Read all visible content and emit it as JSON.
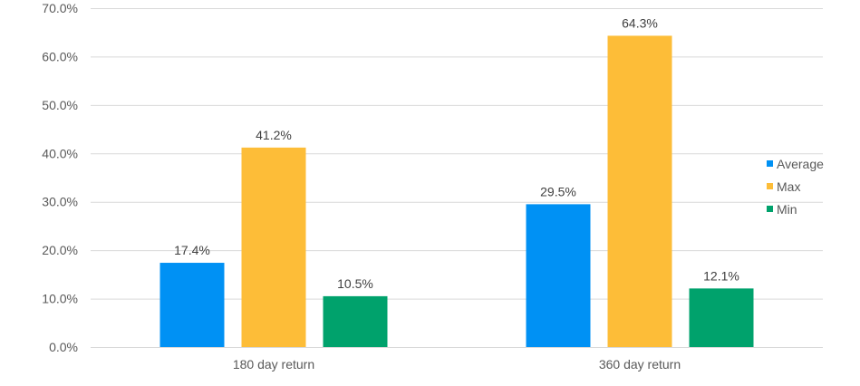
{
  "chart_data": {
    "type": "bar",
    "title": "",
    "xlabel": "",
    "ylabel": "",
    "categories": [
      "180 day return",
      "360 day return"
    ],
    "series": [
      {
        "name": "Average",
        "values": [
          17.4,
          29.5
        ],
        "color": "#0091F4"
      },
      {
        "name": "Max",
        "values": [
          41.2,
          64.3
        ],
        "color": "#FDBD38"
      },
      {
        "name": "Min",
        "values": [
          10.5,
          12.1
        ],
        "color": "#00A26C"
      }
    ],
    "ylim": [
      0,
      70
    ],
    "yticks": [
      0,
      10,
      20,
      30,
      40,
      50,
      60,
      70
    ],
    "value_format": "percent_1dp",
    "grid": true,
    "legend_position": "right"
  }
}
